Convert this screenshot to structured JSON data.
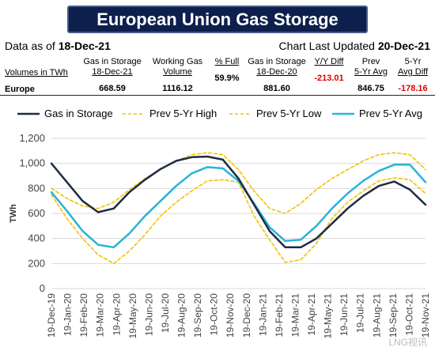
{
  "header": {
    "title": "European Union Gas Storage",
    "data_as_of_label": "Data as of",
    "data_as_of_value": "18-Dec-21",
    "updated_label": "Chart Last Updated",
    "updated_value": "20-Dec-21"
  },
  "stats": {
    "units_label": "Volumes in TWh",
    "row_label": "Europe",
    "columns": [
      {
        "top": "Gas in Storage",
        "bottom": "18-Dec-21",
        "value": "668.59"
      },
      {
        "top": "Working Gas",
        "bottom": "Volume",
        "value": "1116.12"
      },
      {
        "top": "",
        "bottom": "% Full",
        "value": "59.9%"
      },
      {
        "top": "Gas in Storage",
        "bottom": "18-Dec-20",
        "value": "881.60"
      },
      {
        "top": "",
        "bottom": "Y/Y Diff",
        "value": "-213.01"
      },
      {
        "top": "Prev",
        "bottom": "5-Yr Avg",
        "value": "846.75"
      },
      {
        "top": "5-Yr",
        "bottom": "Avg Diff",
        "value": "-178.16"
      }
    ]
  },
  "colors": {
    "gas_in_storage": "#1f2b46",
    "prev_high": "#f2c200",
    "prev_low": "#f2c200",
    "prev_avg": "#2ab3d6",
    "negative": "#e00000"
  },
  "watermark": "LNG视讯",
  "chart_data": {
    "type": "line",
    "title": "",
    "xlabel": "",
    "ylabel": "TWh",
    "ylim": [
      0,
      1200
    ],
    "yticks": [
      "0",
      "200",
      "400",
      "600",
      "800",
      "1,000",
      "1,200"
    ],
    "xticks": [
      "19-Dec-19",
      "19-Jan-20",
      "19-Feb-20",
      "19-Mar-20",
      "19-Apr-20",
      "19-May-20",
      "19-Jun-20",
      "19-Jul-20",
      "19-Aug-20",
      "19-Sep-20",
      "19-Oct-20",
      "19-Nov-20",
      "19-Dec-20",
      "19-Jan-21",
      "19-Feb-21",
      "19-Mar-21",
      "19-Apr-21",
      "19-May-21",
      "19-Jun-21",
      "19-Jul-21",
      "19-Aug-21",
      "19-Sep-21",
      "19-Oct-21",
      "19-Nov-21"
    ],
    "grid": true,
    "legend": "top",
    "series": [
      {
        "name": "Gas in Storage",
        "style": "solid",
        "values": [
          1000,
          850,
          700,
          610,
          640,
          770,
          870,
          955,
          1020,
          1050,
          1055,
          1030,
          880,
          670,
          460,
          330,
          330,
          400,
          520,
          640,
          740,
          820,
          855,
          790,
          670
        ]
      },
      {
        "name": "Prev 5-Yr High",
        "style": "dashed",
        "values": [
          800,
          720,
          660,
          640,
          690,
          790,
          880,
          950,
          1020,
          1070,
          1085,
          1070,
          950,
          780,
          640,
          600,
          680,
          790,
          880,
          950,
          1020,
          1070,
          1085,
          1070,
          950
        ]
      },
      {
        "name": "Prev 5-Yr Low",
        "style": "dashed",
        "values": [
          750,
          560,
          400,
          270,
          200,
          300,
          430,
          580,
          690,
          780,
          860,
          870,
          850,
          580,
          390,
          210,
          230,
          360,
          560,
          690,
          780,
          860,
          885,
          870,
          760
        ]
      },
      {
        "name": "Prev 5-Yr Avg",
        "style": "solid",
        "values": [
          770,
          620,
          460,
          350,
          330,
          440,
          580,
          700,
          820,
          920,
          970,
          960,
          860,
          680,
          490,
          380,
          390,
          500,
          640,
          760,
          860,
          940,
          990,
          990,
          850
        ]
      }
    ]
  }
}
